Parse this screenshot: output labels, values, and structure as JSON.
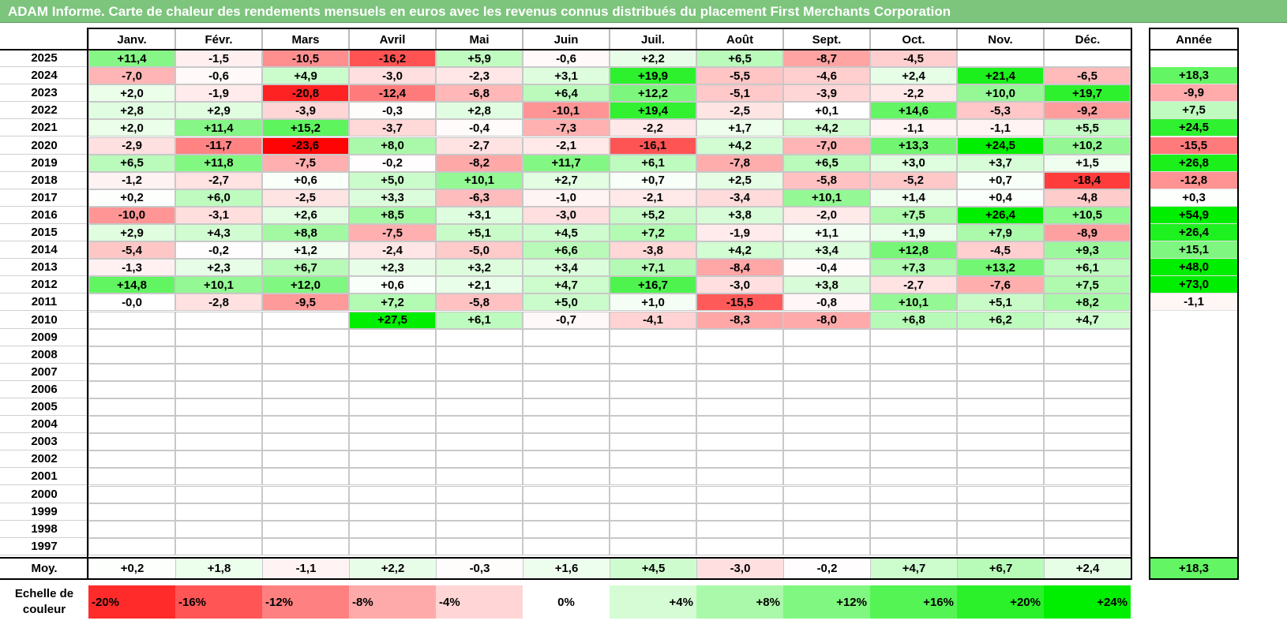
{
  "title": "ADAM Informe. Carte de chaleur des rendements mensuels en euros avec les revenus connus distribués du placement First Merchants Corporation",
  "colors": {
    "title_bg": "#7dc47d",
    "neg_max": "#ff0000",
    "pos_max": "#00ee00",
    "neutral": "#ffffff"
  },
  "chart_data": {
    "type": "heatmap",
    "title": "ADAM Informe. Carte de chaleur des rendements mensuels en euros avec les revenus connus distribués du placement First Merchants Corporation",
    "columns": [
      "Janv.",
      "Févr.",
      "Mars",
      "Avril",
      "Mai",
      "Juin",
      "Juil.",
      "Août",
      "Sept.",
      "Oct.",
      "Nov.",
      "Déc."
    ],
    "year_header": "Année",
    "rows": [
      {
        "year": "2025",
        "months": [
          "+11,4",
          "-1,5",
          "-10,5",
          "-16,2",
          "+5,9",
          "-0,6",
          "+2,2",
          "+6,5",
          "-8,7",
          "-4,5",
          "",
          ""
        ],
        "annual": ""
      },
      {
        "year": "2024",
        "months": [
          "-7,0",
          "-0,6",
          "+4,9",
          "-3,0",
          "-2,3",
          "+3,1",
          "+19,9",
          "-5,5",
          "-4,6",
          "+2,4",
          "+21,4",
          "-6,5"
        ],
        "annual": "+18,3"
      },
      {
        "year": "2023",
        "months": [
          "+2,0",
          "-1,9",
          "-20,8",
          "-12,4",
          "-6,8",
          "+6,4",
          "+12,2",
          "-5,1",
          "-3,9",
          "-2,2",
          "+10,0",
          "+19,7"
        ],
        "annual": "-9,9"
      },
      {
        "year": "2022",
        "months": [
          "+2,8",
          "+2,9",
          "-3,9",
          "-0,3",
          "+2,8",
          "-10,1",
          "+19,4",
          "-2,5",
          "+0,1",
          "+14,6",
          "-5,3",
          "-9,2"
        ],
        "annual": "+7,5"
      },
      {
        "year": "2021",
        "months": [
          "+2,0",
          "+11,4",
          "+15,2",
          "-3,7",
          "-0,4",
          "-7,3",
          "-2,2",
          "+1,7",
          "+4,2",
          "-1,1",
          "-1,1",
          "+5,5"
        ],
        "annual": "+24,5"
      },
      {
        "year": "2020",
        "months": [
          "-2,9",
          "-11,7",
          "-23,6",
          "+8,0",
          "-2,7",
          "-2,1",
          "-16,1",
          "+4,2",
          "-7,0",
          "+13,3",
          "+24,5",
          "+10,2"
        ],
        "annual": "-15,5"
      },
      {
        "year": "2019",
        "months": [
          "+6,5",
          "+11,8",
          "-7,5",
          "-0,2",
          "-8,2",
          "+11,7",
          "+6,1",
          "-7,8",
          "+6,5",
          "+3,0",
          "+3,7",
          "+1,5"
        ],
        "annual": "+26,8"
      },
      {
        "year": "2018",
        "months": [
          "-1,2",
          "-2,7",
          "+0,6",
          "+5,0",
          "+10,1",
          "+2,7",
          "+0,7",
          "+2,5",
          "-5,8",
          "-5,2",
          "+0,7",
          "-18,4"
        ],
        "annual": "-12,8"
      },
      {
        "year": "2017",
        "months": [
          "+0,2",
          "+6,0",
          "-2,5",
          "+3,3",
          "-6,3",
          "-1,0",
          "-2,1",
          "-3,4",
          "+10,1",
          "+1,4",
          "+0,4",
          "-4,8"
        ],
        "annual": "+0,3"
      },
      {
        "year": "2016",
        "months": [
          "-10,0",
          "-3,1",
          "+2,6",
          "+8,5",
          "+3,1",
          "-3,0",
          "+5,2",
          "+3,8",
          "-2,0",
          "+7,5",
          "+26,4",
          "+10,5"
        ],
        "annual": "+54,9"
      },
      {
        "year": "2015",
        "months": [
          "+2,9",
          "+4,3",
          "+8,8",
          "-7,5",
          "+5,1",
          "+4,5",
          "+7,2",
          "-1,9",
          "+1,1",
          "+1,9",
          "+7,9",
          "-8,9"
        ],
        "annual": "+26,4"
      },
      {
        "year": "2014",
        "months": [
          "-5,4",
          "-0,2",
          "+1,2",
          "-2,4",
          "-5,0",
          "+6,6",
          "-3,8",
          "+4,2",
          "+3,4",
          "+12,8",
          "-4,5",
          "+9,3"
        ],
        "annual": "+15,1"
      },
      {
        "year": "2013",
        "months": [
          "-1,3",
          "+2,3",
          "+6,7",
          "+2,3",
          "+3,2",
          "+3,4",
          "+7,1",
          "-8,4",
          "-0,4",
          "+7,3",
          "+13,2",
          "+6,1"
        ],
        "annual": "+48,0"
      },
      {
        "year": "2012",
        "months": [
          "+14,8",
          "+10,1",
          "+12,0",
          "+0,6",
          "+2,1",
          "+4,7",
          "+16,7",
          "-3,0",
          "+3,8",
          "-2,7",
          "-7,6",
          "+7,5"
        ],
        "annual": "+73,0"
      },
      {
        "year": "2011",
        "months": [
          "-0,0",
          "-2,8",
          "-9,5",
          "+7,2",
          "-5,8",
          "+5,0",
          "+1,0",
          "-15,5",
          "-0,8",
          "+10,1",
          "+5,1",
          "+8,2"
        ],
        "annual": "-1,1"
      },
      {
        "year": "2010",
        "months": [
          "",
          "",
          "",
          "+27,5",
          "+6,1",
          "-0,7",
          "-4,1",
          "-8,3",
          "-8,0",
          "+6,8",
          "+6,2",
          "+4,7"
        ],
        "annual": ""
      },
      {
        "year": "2009",
        "months": [
          "",
          "",
          "",
          "",
          "",
          "",
          "",
          "",
          "",
          "",
          "",
          ""
        ],
        "annual": ""
      },
      {
        "year": "2008",
        "months": [
          "",
          "",
          "",
          "",
          "",
          "",
          "",
          "",
          "",
          "",
          "",
          ""
        ],
        "annual": ""
      },
      {
        "year": "2007",
        "months": [
          "",
          "",
          "",
          "",
          "",
          "",
          "",
          "",
          "",
          "",
          "",
          ""
        ],
        "annual": ""
      },
      {
        "year": "2006",
        "months": [
          "",
          "",
          "",
          "",
          "",
          "",
          "",
          "",
          "",
          "",
          "",
          ""
        ],
        "annual": ""
      },
      {
        "year": "2005",
        "months": [
          "",
          "",
          "",
          "",
          "",
          "",
          "",
          "",
          "",
          "",
          "",
          ""
        ],
        "annual": ""
      },
      {
        "year": "2004",
        "months": [
          "",
          "",
          "",
          "",
          "",
          "",
          "",
          "",
          "",
          "",
          "",
          ""
        ],
        "annual": ""
      },
      {
        "year": "2003",
        "months": [
          "",
          "",
          "",
          "",
          "",
          "",
          "",
          "",
          "",
          "",
          "",
          ""
        ],
        "annual": ""
      },
      {
        "year": "2002",
        "months": [
          "",
          "",
          "",
          "",
          "",
          "",
          "",
          "",
          "",
          "",
          "",
          ""
        ],
        "annual": ""
      },
      {
        "year": "2001",
        "months": [
          "",
          "",
          "",
          "",
          "",
          "",
          "",
          "",
          "",
          "",
          "",
          ""
        ],
        "annual": ""
      },
      {
        "year": "2000",
        "months": [
          "",
          "",
          "",
          "",
          "",
          "",
          "",
          "",
          "",
          "",
          "",
          ""
        ],
        "annual": ""
      },
      {
        "year": "1999",
        "months": [
          "",
          "",
          "",
          "",
          "",
          "",
          "",
          "",
          "",
          "",
          "",
          ""
        ],
        "annual": ""
      },
      {
        "year": "1998",
        "months": [
          "",
          "",
          "",
          "",
          "",
          "",
          "",
          "",
          "",
          "",
          "",
          ""
        ],
        "annual": ""
      },
      {
        "year": "1997",
        "months": [
          "",
          "",
          "",
          "",
          "",
          "",
          "",
          "",
          "",
          "",
          "",
          ""
        ],
        "annual": ""
      }
    ],
    "average": {
      "label": "Moy.",
      "months": [
        "+0,2",
        "+1,8",
        "-1,1",
        "+2,2",
        "-0,3",
        "+1,6",
        "+4,5",
        "-3,0",
        "-0,2",
        "+4,7",
        "+6,7",
        "+2,4"
      ],
      "annual": "+18,3"
    },
    "scale": {
      "label": "Echelle de couleur",
      "steps": [
        "-20%",
        "-16%",
        "-12%",
        "-8%",
        "-4%",
        "0%",
        "+4%",
        "+8%",
        "+12%",
        "+16%",
        "+20%",
        "+24%"
      ],
      "values": [
        -20,
        -16,
        -12,
        -8,
        -4,
        0,
        4,
        8,
        12,
        16,
        20,
        24
      ]
    }
  }
}
